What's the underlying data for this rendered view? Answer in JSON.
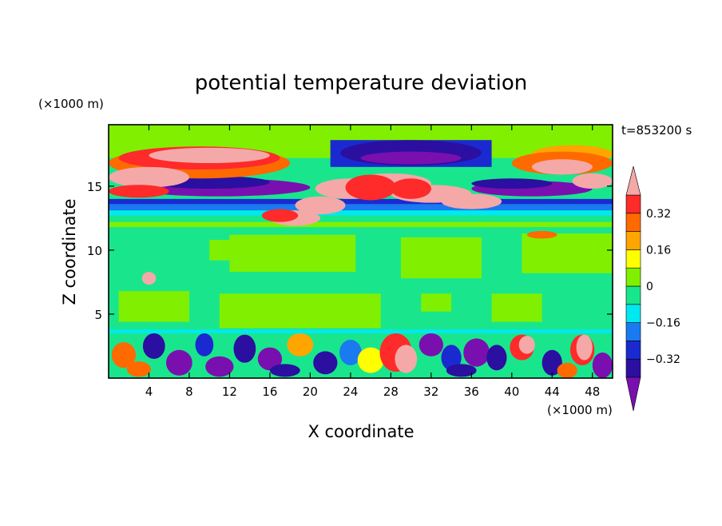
{
  "chart_data": {
    "type": "heatmap",
    "title": "potential temperature deviation",
    "xlabel": "X coordinate",
    "ylabel": "Z coordinate",
    "x_unit": "(×1000 m)",
    "y_unit": "(×1000 m)",
    "time_label": "t=853200 s",
    "xlim": [
      0,
      50
    ],
    "ylim": [
      0,
      19.8
    ],
    "x_ticks": [
      4,
      8,
      12,
      16,
      20,
      24,
      28,
      32,
      36,
      40,
      44,
      48
    ],
    "y_ticks": [
      5,
      10,
      15
    ],
    "colorbar": {
      "levels": [
        -0.4,
        -0.32,
        -0.24,
        -0.16,
        -0.08,
        0,
        0.08,
        0.16,
        0.24,
        0.32,
        0.4
      ],
      "tick_labels": [
        "0.32",
        "0.16",
        "0",
        "−0.16",
        "−0.32"
      ],
      "tick_values": [
        0.32,
        0.16,
        0,
        -0.16,
        -0.32
      ],
      "colors": [
        "#7a0fb0",
        "#2b0fa0",
        "#1a2ad0",
        "#1a7af0",
        "#00e8f0",
        "#19e68c",
        "#80f000",
        "#ffff00",
        "#ffa500",
        "#ff6a00",
        "#ff2a2a",
        "#f5a8a8"
      ]
    }
  }
}
